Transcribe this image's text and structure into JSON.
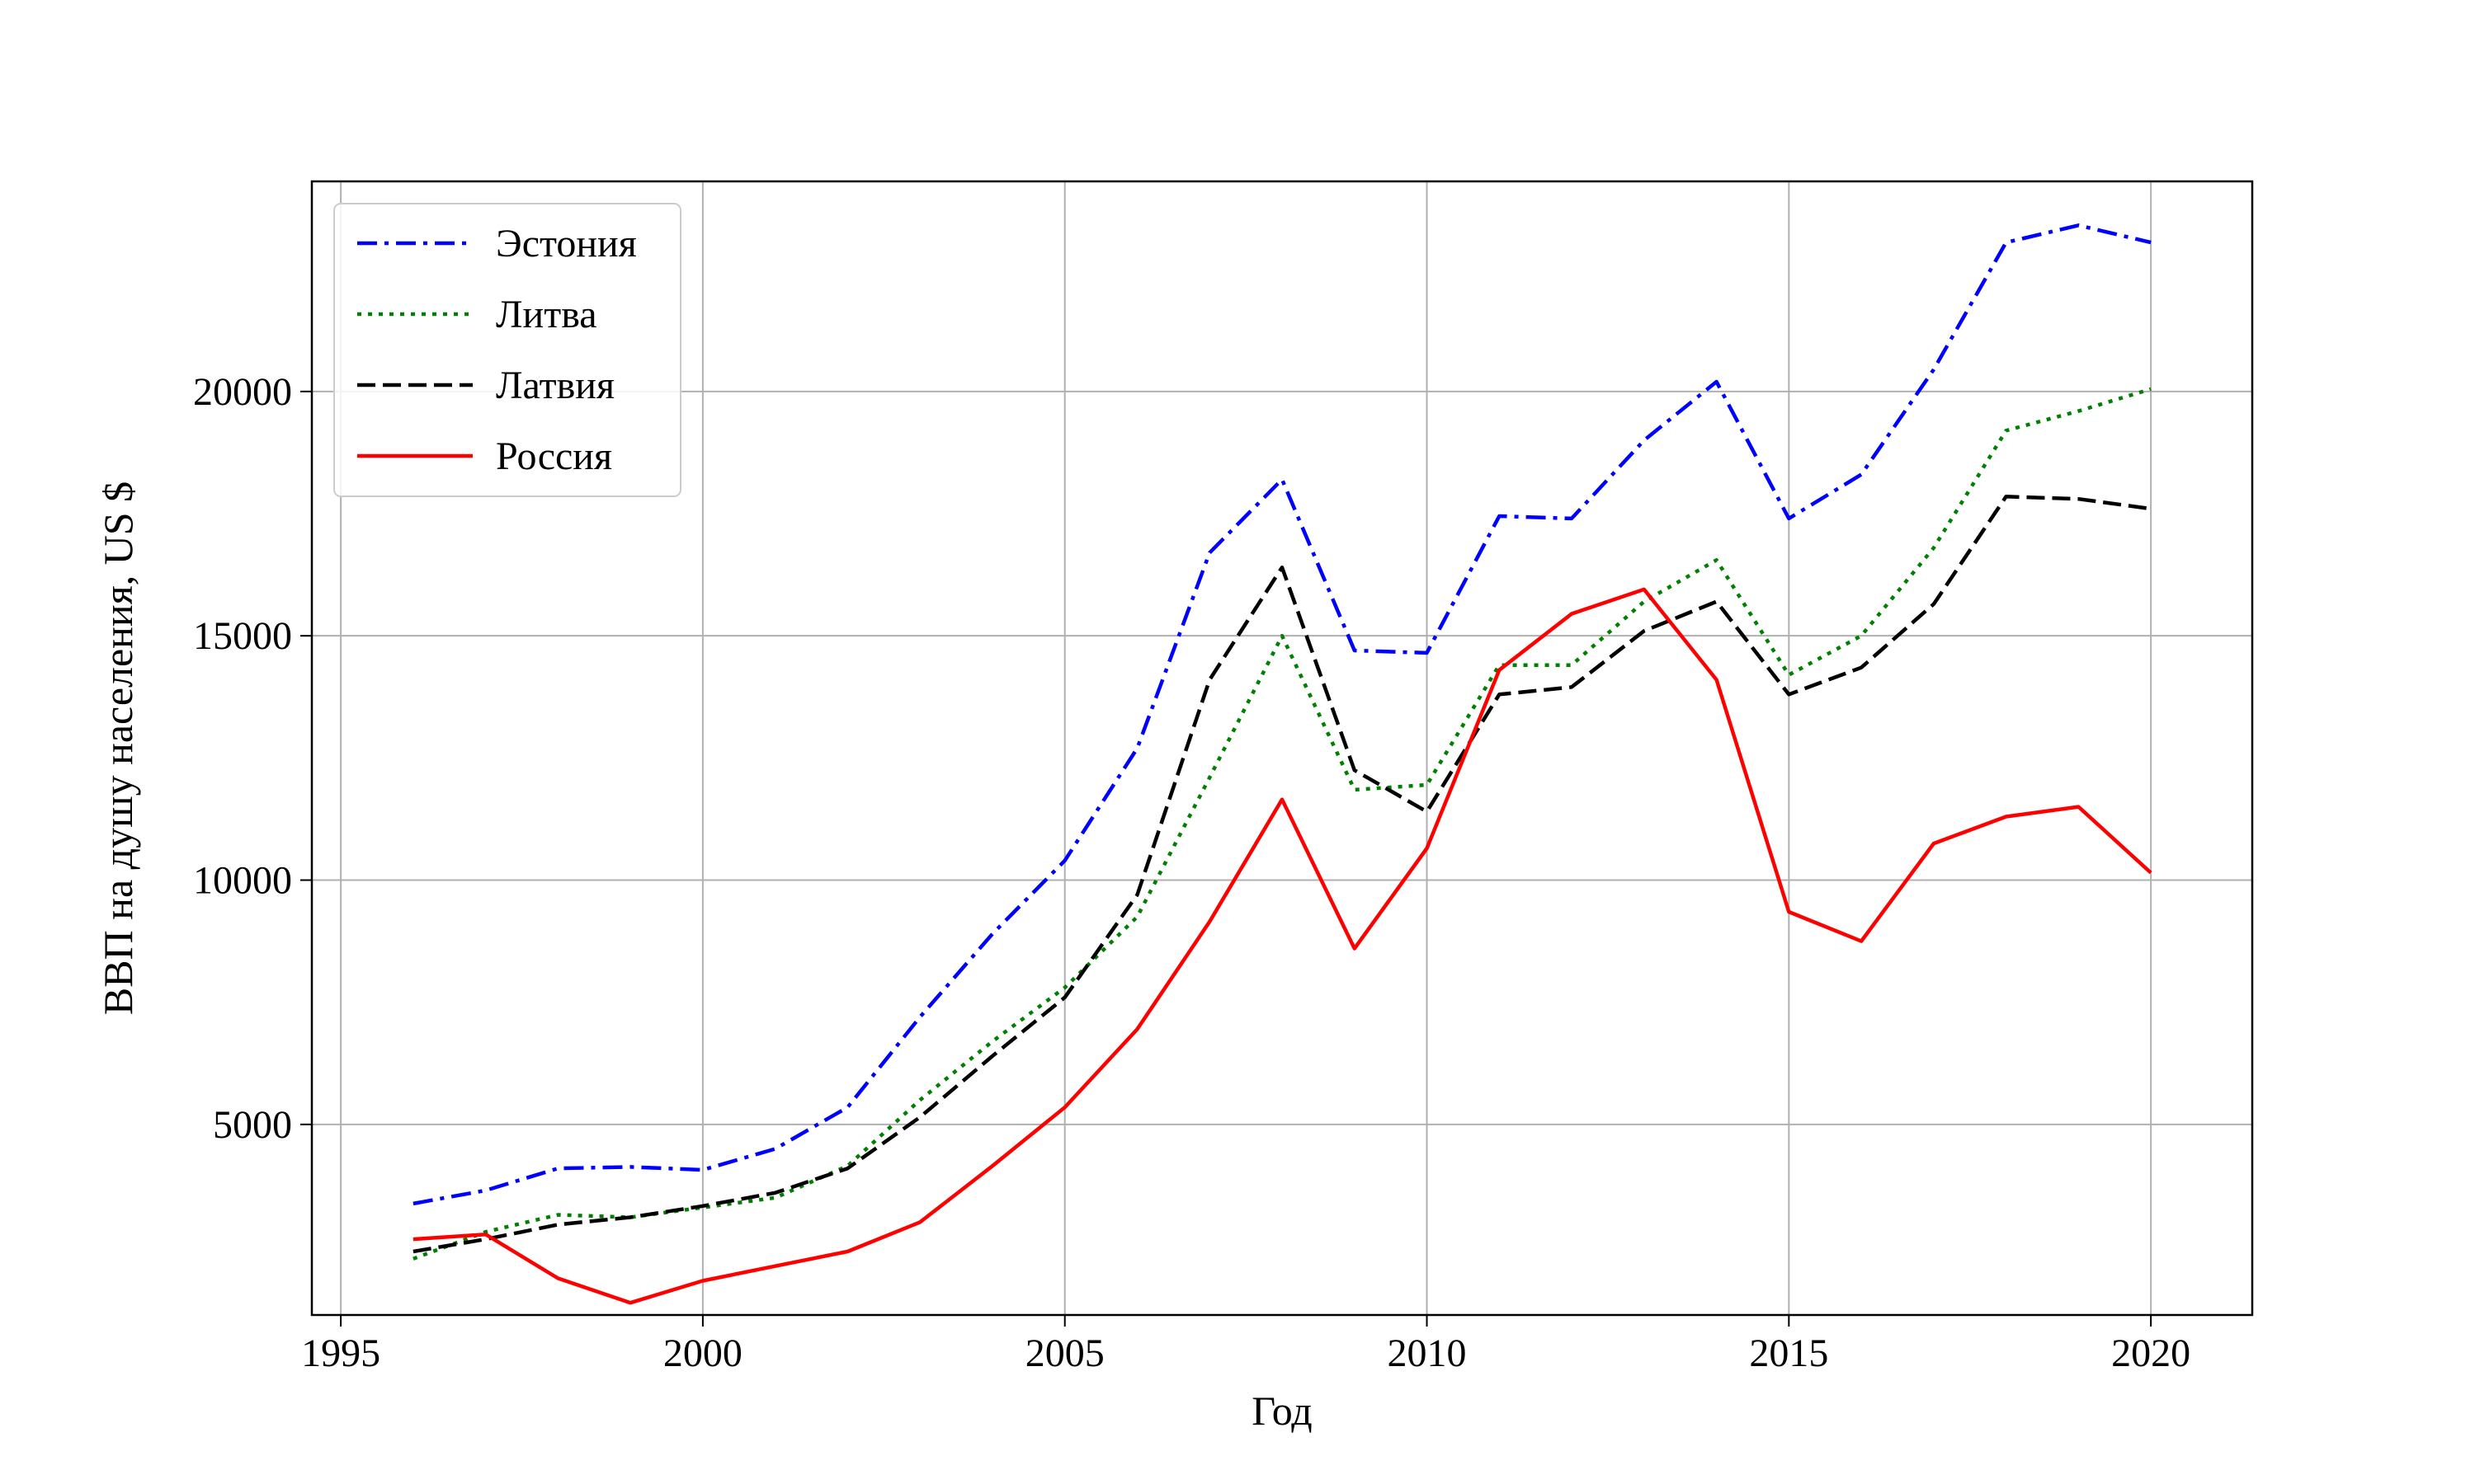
{
  "chart_data": {
    "type": "line",
    "title": "",
    "xlabel": "Год",
    "ylabel": "ВВП на душу населения, US $",
    "xlim": [
      1994.6,
      2021.4
    ],
    "ylim": [
      1100,
      24300
    ],
    "xticks": [
      1995,
      2000,
      2005,
      2010,
      2015,
      2020
    ],
    "yticks": [
      5000,
      10000,
      15000,
      20000
    ],
    "grid": true,
    "legend_position": "top-left",
    "x": [
      1996,
      1997,
      1998,
      1999,
      2000,
      2001,
      2002,
      2003,
      2004,
      2005,
      2006,
      2007,
      2008,
      2009,
      2010,
      2011,
      2012,
      2013,
      2014,
      2015,
      2016,
      2017,
      2018,
      2019,
      2020
    ],
    "series": [
      {
        "name": "Эстония",
        "color": "#0000ff",
        "style": "dashdot",
        "values": [
          3380,
          3650,
          4100,
          4130,
          4070,
          4500,
          5350,
          7200,
          8900,
          10400,
          12700,
          16700,
          18200,
          14700,
          14650,
          17450,
          17400,
          19000,
          20200,
          17400,
          18300,
          20450,
          23050,
          23400,
          23050
        ]
      },
      {
        "name": "Литва",
        "color": "#008000",
        "style": "dotted",
        "values": [
          2250,
          2800,
          3150,
          3100,
          3300,
          3500,
          4150,
          5500,
          6700,
          7800,
          9250,
          12100,
          15000,
          11850,
          11950,
          14400,
          14400,
          15700,
          16550,
          14200,
          15000,
          16800,
          19200,
          19600,
          20050
        ]
      },
      {
        "name": "Латвия",
        "color": "#000000",
        "style": "dashed",
        "values": [
          2400,
          2650,
          2950,
          3100,
          3330,
          3600,
          4100,
          5150,
          6400,
          7600,
          9700,
          14100,
          16400,
          12250,
          11400,
          13800,
          13950,
          15100,
          15700,
          13800,
          14350,
          15650,
          17850,
          17800,
          17600
        ]
      },
      {
        "name": "Россия",
        "color": "#ff0000",
        "style": "solid",
        "values": [
          2650,
          2750,
          1850,
          1350,
          1800,
          2100,
          2400,
          3000,
          4150,
          5350,
          6950,
          9150,
          11650,
          8600,
          10650,
          14300,
          15450,
          15950,
          14100,
          9350,
          8750,
          10750,
          11300,
          11500,
          10150
        ]
      }
    ]
  }
}
